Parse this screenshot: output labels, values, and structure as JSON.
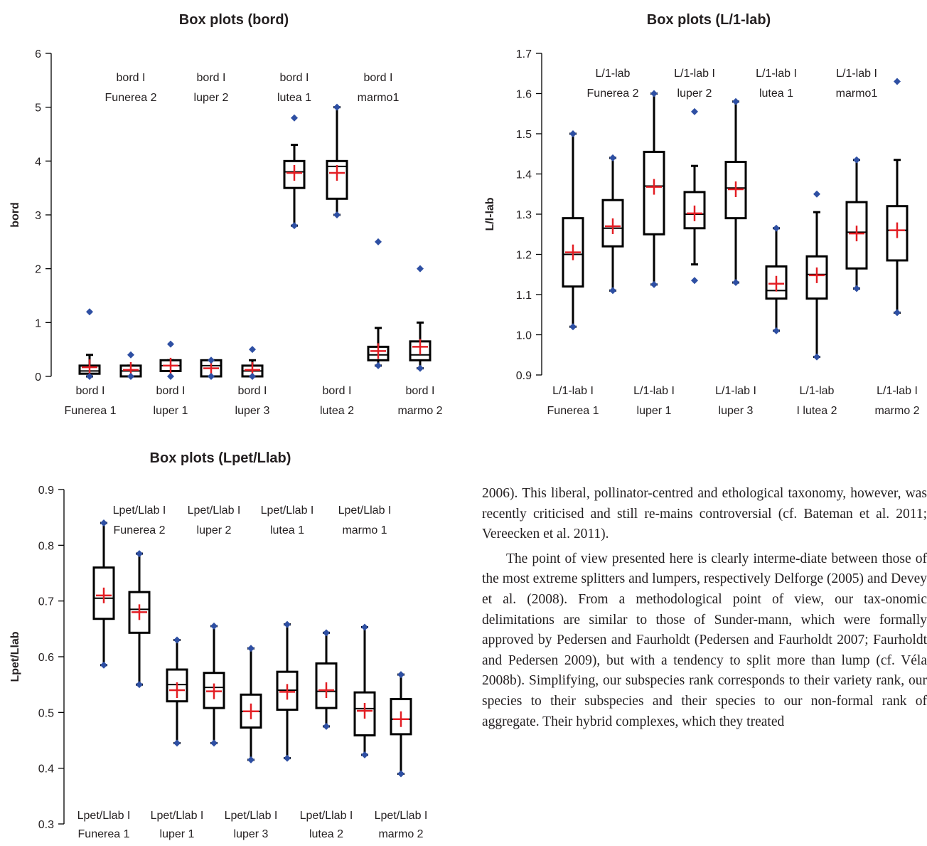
{
  "colors": {
    "box": "#000000",
    "mean_marker": "#e31e24",
    "outlier": "#2e4fa3"
  },
  "chart_data": [
    {
      "type": "box",
      "title": "Box plots (bord)",
      "ylabel": "bord",
      "ylim": [
        0,
        6
      ],
      "yticks": [
        "0",
        "1",
        "2",
        "3",
        "4",
        "5",
        "6"
      ],
      "bottom_labels": [
        [
          "bord I",
          "Funerea 1"
        ],
        [
          "bord I",
          "luper 1"
        ],
        [
          "bord I",
          "luper 3"
        ],
        [
          "bord I",
          "lutea 2"
        ],
        [
          "bord I",
          "marmo 2"
        ]
      ],
      "top_labels": [
        [
          "bord I",
          "Funerea 2"
        ],
        [
          "bord I",
          "luper 2"
        ],
        [
          "bord I",
          "lutea 1"
        ],
        [
          "bord I",
          "marmo1"
        ]
      ],
      "series": [
        {
          "min": 0.0,
          "q1": 0.05,
          "median": 0.1,
          "q3": 0.2,
          "max": 0.4,
          "mean": 0.17,
          "outliers": [
            1.2,
            0.0
          ]
        },
        {
          "min": 0.0,
          "q1": 0.0,
          "median": 0.1,
          "q3": 0.2,
          "max": 0.2,
          "mean": 0.12,
          "outliers": [
            0.4,
            0.0
          ]
        },
        {
          "min": 0.1,
          "q1": 0.1,
          "median": 0.2,
          "q3": 0.3,
          "max": 0.3,
          "mean": 0.2,
          "outliers": [
            0.6,
            0.0
          ]
        },
        {
          "min": 0.0,
          "q1": 0.0,
          "median": 0.2,
          "q3": 0.3,
          "max": 0.3,
          "mean": 0.15,
          "outliers": [
            0.3,
            0.0
          ]
        },
        {
          "min": 0.0,
          "q1": 0.0,
          "median": 0.1,
          "q3": 0.2,
          "max": 0.3,
          "mean": 0.12,
          "outliers": [
            0.5,
            0.0
          ]
        },
        {
          "min": 2.8,
          "q1": 3.5,
          "median": 3.8,
          "q3": 4.0,
          "max": 4.3,
          "mean": 3.78,
          "outliers": [
            4.8,
            2.8
          ]
        },
        {
          "min": 3.0,
          "q1": 3.3,
          "median": 3.9,
          "q3": 4.0,
          "max": 5.0,
          "mean": 3.78,
          "outliers": [
            5.0,
            3.0
          ]
        },
        {
          "min": 0.2,
          "q1": 0.3,
          "median": 0.4,
          "q3": 0.55,
          "max": 0.9,
          "mean": 0.47,
          "outliers": [
            2.5,
            0.2
          ]
        },
        {
          "min": 0.15,
          "q1": 0.3,
          "median": 0.4,
          "q3": 0.65,
          "max": 1.0,
          "mean": 0.55,
          "outliers": [
            2.0,
            0.15
          ]
        }
      ]
    },
    {
      "type": "box",
      "title": "Box plots (L/1-lab)",
      "ylabel": "L/l-lab",
      "ylim": [
        0.9,
        1.7
      ],
      "yticks": [
        "0.9",
        "1.0",
        "1.1",
        "1.2",
        "1.3",
        "1.4",
        "1.5",
        "1.6",
        "1.7"
      ],
      "bottom_labels": [
        [
          "L/1-lab I",
          "Funerea  1"
        ],
        [
          "L/1-lab I",
          "luper 1"
        ],
        [
          "L/1-lab I",
          "luper 3"
        ],
        [
          "L/1-lab",
          "I lutea 2"
        ],
        [
          "L/1-lab I",
          "marmo 2"
        ]
      ],
      "top_labels": [
        [
          "L/1-lab",
          "Funerea 2"
        ],
        [
          "L/1-lab I",
          "luper 2"
        ],
        [
          "L/1-lab I",
          "lutea 1"
        ],
        [
          "L/1-lab I",
          "marmo1"
        ]
      ],
      "series": [
        {
          "min": 1.02,
          "q1": 1.12,
          "median": 1.2,
          "q3": 1.29,
          "max": 1.5,
          "mean": 1.205,
          "outliers": [
            1.5,
            1.02
          ]
        },
        {
          "min": 1.11,
          "q1": 1.22,
          "median": 1.265,
          "q3": 1.335,
          "max": 1.44,
          "mean": 1.27,
          "outliers": [
            1.44,
            1.11
          ]
        },
        {
          "min": 1.125,
          "q1": 1.25,
          "median": 1.37,
          "q3": 1.455,
          "max": 1.6,
          "mean": 1.368,
          "outliers": [
            1.6,
            1.125
          ]
        },
        {
          "min": 1.175,
          "q1": 1.265,
          "median": 1.3,
          "q3": 1.355,
          "max": 1.42,
          "mean": 1.302,
          "outliers": [
            1.555,
            1.135
          ]
        },
        {
          "min": 1.13,
          "q1": 1.29,
          "median": 1.365,
          "q3": 1.43,
          "max": 1.58,
          "mean": 1.362,
          "outliers": [
            1.58,
            1.13
          ]
        },
        {
          "min": 1.01,
          "q1": 1.09,
          "median": 1.11,
          "q3": 1.17,
          "max": 1.265,
          "mean": 1.127,
          "outliers": [
            1.265,
            1.01
          ]
        },
        {
          "min": 0.945,
          "q1": 1.09,
          "median": 1.15,
          "q3": 1.195,
          "max": 1.305,
          "mean": 1.148,
          "outliers": [
            1.35,
            0.945
          ]
        },
        {
          "min": 1.115,
          "q1": 1.165,
          "median": 1.255,
          "q3": 1.33,
          "max": 1.435,
          "mean": 1.252,
          "outliers": [
            1.435,
            1.115
          ]
        },
        {
          "min": 1.055,
          "q1": 1.185,
          "median": 1.26,
          "q3": 1.32,
          "max": 1.435,
          "mean": 1.26,
          "outliers": [
            1.63,
            1.055
          ]
        }
      ]
    },
    {
      "type": "box",
      "title": "Box plots (Lpet/Llab)",
      "ylabel": "Lpet/Llab",
      "ylim": [
        0.3,
        0.9
      ],
      "yticks": [
        "0.3",
        "0.4",
        "0.5",
        "0.6",
        "0.7",
        "0.8",
        "0.9"
      ],
      "bottom_labels": [
        [
          "Lpet/Llab I",
          "Funerea  1"
        ],
        [
          "Lpet/Llab I",
          "luper 1"
        ],
        [
          "Lpet/Llab I",
          "luper 3"
        ],
        [
          "Lpet/Llab I",
          "lutea 2"
        ],
        [
          "Lpet/Llab I",
          "marmo 2"
        ]
      ],
      "top_labels": [
        [
          "Lpet/Llab I",
          "Funerea  2"
        ],
        [
          "Lpet/Llab I",
          "luper 2"
        ],
        [
          "Lpet/Llab I",
          "lutea 1"
        ],
        [
          "Lpet/Llab I",
          "marmo 1"
        ]
      ],
      "series": [
        {
          "min": 0.585,
          "q1": 0.668,
          "median": 0.705,
          "q3": 0.76,
          "max": 0.84,
          "mean": 0.71,
          "outliers": [
            0.84,
            0.585
          ]
        },
        {
          "min": 0.55,
          "q1": 0.643,
          "median": 0.685,
          "q3": 0.716,
          "max": 0.785,
          "mean": 0.68,
          "outliers": [
            0.785,
            0.55
          ]
        },
        {
          "min": 0.445,
          "q1": 0.52,
          "median": 0.55,
          "q3": 0.577,
          "max": 0.63,
          "mean": 0.54,
          "outliers": [
            0.63,
            0.445
          ]
        },
        {
          "min": 0.445,
          "q1": 0.508,
          "median": 0.545,
          "q3": 0.571,
          "max": 0.655,
          "mean": 0.538,
          "outliers": [
            0.655,
            0.445
          ]
        },
        {
          "min": 0.415,
          "q1": 0.473,
          "median": 0.502,
          "q3": 0.532,
          "max": 0.615,
          "mean": 0.502,
          "outliers": [
            0.615,
            0.415
          ]
        },
        {
          "min": 0.418,
          "q1": 0.505,
          "median": 0.54,
          "q3": 0.573,
          "max": 0.658,
          "mean": 0.537,
          "outliers": [
            0.658,
            0.418
          ]
        },
        {
          "min": 0.475,
          "q1": 0.508,
          "median": 0.538,
          "q3": 0.588,
          "max": 0.643,
          "mean": 0.54,
          "outliers": [
            0.643,
            0.475
          ]
        },
        {
          "min": 0.424,
          "q1": 0.459,
          "median": 0.507,
          "q3": 0.536,
          "max": 0.653,
          "mean": 0.503,
          "outliers": [
            0.653,
            0.424
          ]
        },
        {
          "min": 0.39,
          "q1": 0.461,
          "median": 0.488,
          "q3": 0.524,
          "max": 0.568,
          "mean": 0.488,
          "outliers": [
            0.568,
            0.39
          ]
        }
      ]
    }
  ],
  "text": {
    "paragraph1": "2006). This liberal, pollinator-centred and ethological taxonomy, however, was recently criticised and still re-mains controversial (cf. Bateman et al. 2011; Vereecken et al. 2011).",
    "paragraph2": "The point of view presented here is clearly interme-diate between those of the most extreme splitters and lumpers, respectively Delforge (2005) and Devey et al. (2008). From a methodological point of view, our tax-onomic delimitations are similar to those of Sunder-mann, which were formally approved by Pedersen and Faurholdt (Pedersen and Faurholdt 2007; Faurholdt and Pedersen 2009), but with a tendency to split more than lump (cf. Véla 2008b). Simplifying, our subspecies rank corresponds to their variety rank, our species to their subspecies and their species to our non-formal rank of aggregate. Their hybrid complexes, which they treated"
  }
}
